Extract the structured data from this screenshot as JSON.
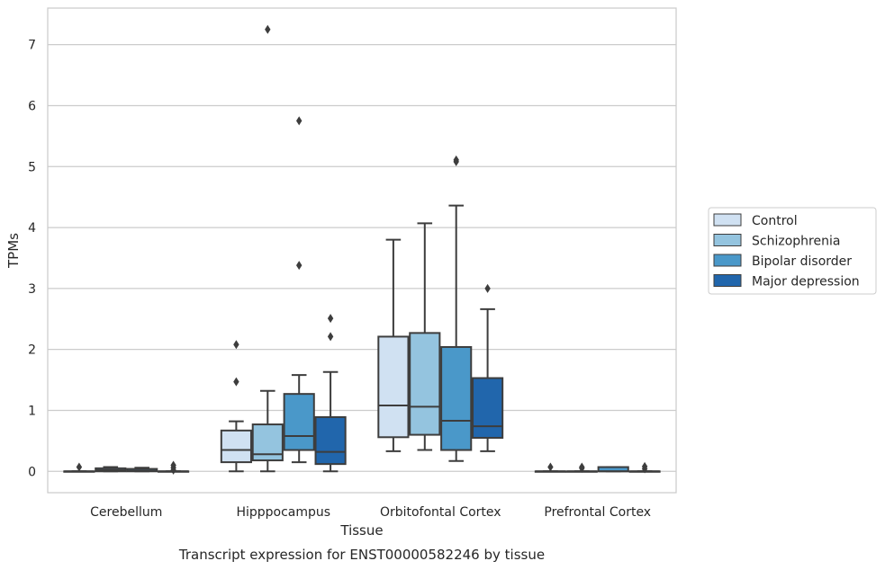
{
  "chart_data": {
    "type": "box",
    "title": "",
    "caption": "Transcript expression for ENST00000582246 by tissue",
    "xlabel": "Tissue",
    "ylabel": "TPMs",
    "ylim": [
      -0.35,
      7.6
    ],
    "yticks": [
      "0",
      "1",
      "2",
      "3",
      "4",
      "5",
      "6",
      "7"
    ],
    "grid": "horizontal",
    "legend_position": "right",
    "categories": [
      "Cerebellum",
      "Hipppocampus",
      "Orbitofontal Cortex",
      "Prefrontal Cortex"
    ],
    "series": [
      {
        "name": "Control",
        "color": "#d0e1f2",
        "boxes": [
          {
            "min": 0,
            "q1": 0,
            "median": 0,
            "q3": 0,
            "max": 0,
            "outliers": [
              0.07
            ]
          },
          {
            "min": 0,
            "q1": 0.15,
            "median": 0.35,
            "q3": 0.67,
            "max": 0.82,
            "outliers": [
              1.47,
              2.08
            ]
          },
          {
            "min": 0.33,
            "q1": 0.56,
            "median": 1.08,
            "q3": 2.21,
            "max": 3.8,
            "outliers": []
          },
          {
            "min": 0,
            "q1": 0,
            "median": 0,
            "q3": 0,
            "max": 0,
            "outliers": [
              0.07
            ]
          }
        ]
      },
      {
        "name": "Schizophrenia",
        "color": "#94c4df",
        "boxes": [
          {
            "min": 0,
            "q1": 0,
            "median": 0.02,
            "q3": 0.05,
            "max": 0.07,
            "outliers": []
          },
          {
            "min": 0,
            "q1": 0.18,
            "median": 0.28,
            "q3": 0.77,
            "max": 1.32,
            "outliers": [
              7.25
            ]
          },
          {
            "min": 0.35,
            "q1": 0.6,
            "median": 1.06,
            "q3": 2.27,
            "max": 4.07,
            "outliers": []
          },
          {
            "min": 0,
            "q1": 0,
            "median": 0,
            "q3": 0,
            "max": 0,
            "outliers": [
              0.07,
              0.05
            ]
          }
        ]
      },
      {
        "name": "Bipolar disorder",
        "color": "#4a98c9",
        "boxes": [
          {
            "min": 0,
            "q1": 0,
            "median": 0.01,
            "q3": 0.04,
            "max": 0.06,
            "outliers": []
          },
          {
            "min": 0.15,
            "q1": 0.35,
            "median": 0.58,
            "q3": 1.27,
            "max": 1.58,
            "outliers": [
              3.38,
              5.75
            ]
          },
          {
            "min": 0.17,
            "q1": 0.35,
            "median": 0.83,
            "q3": 2.04,
            "max": 4.36,
            "outliers": [
              5.08,
              5.11
            ]
          },
          {
            "min": 0,
            "q1": 0,
            "median": 0,
            "q3": 0.07,
            "max": 0.07,
            "outliers": []
          }
        ]
      },
      {
        "name": "Major depression",
        "color": "#2166ac",
        "boxes": [
          {
            "min": 0,
            "q1": 0,
            "median": 0,
            "q3": 0,
            "max": 0,
            "outliers": [
              0.1,
              0.06,
              0.02
            ]
          },
          {
            "min": 0,
            "q1": 0.12,
            "median": 0.32,
            "q3": 0.89,
            "max": 1.63,
            "outliers": [
              2.21,
              2.51
            ]
          },
          {
            "min": 0.33,
            "q1": 0.55,
            "median": 0.74,
            "q3": 1.53,
            "max": 2.66,
            "outliers": [
              3.0
            ]
          },
          {
            "min": 0,
            "q1": 0,
            "median": 0,
            "q3": 0,
            "max": 0,
            "outliers": [
              0.08,
              0.04
            ]
          }
        ]
      }
    ]
  }
}
